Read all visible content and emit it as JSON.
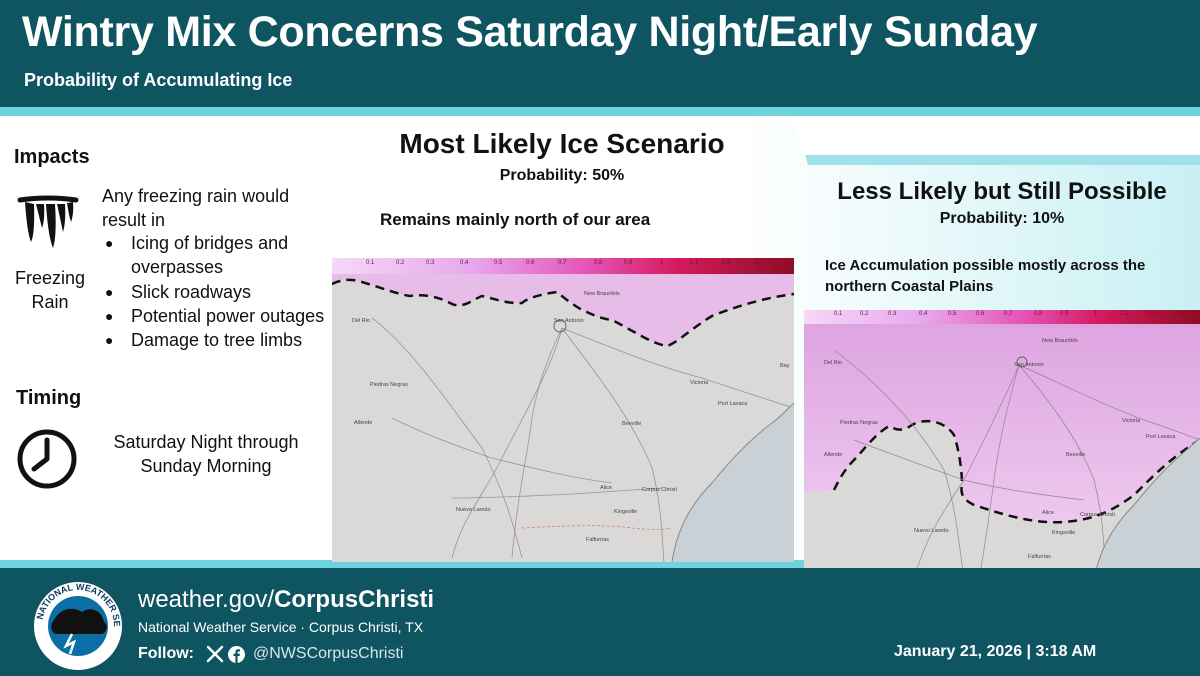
{
  "header": {
    "title": "Wintry Mix Concerns Saturday Night/Early Sunday",
    "subtitle": "Probability of Accumulating Ice"
  },
  "impacts": {
    "heading": "Impacts",
    "icon": "freezing-rain-icon",
    "icon_label": "Freezing Rain",
    "intro": "Any freezing rain would result in",
    "items": [
      "Icing of bridges and overpasses",
      "Slick roadways",
      "Potential power outages",
      "Damage to tree limbs"
    ]
  },
  "timing": {
    "heading": "Timing",
    "icon": "clock-icon",
    "text": "Saturday Night through Sunday Morning"
  },
  "scenario_main": {
    "title": "Most Likely Ice Scenario",
    "probability": "Probability: 50%",
    "note": "Remains mainly north of our area"
  },
  "scenario_alt": {
    "title": "Less Likely but Still Possible",
    "probability": "Probability: 10%",
    "note": "Ice Accumulation possible mostly across the northern Coastal Plains"
  },
  "scale_ticks": [
    "0.1",
    "0.2",
    "0.3",
    "0.4",
    "0.5",
    "0.6",
    "0.7",
    "0.8",
    "0.9",
    "1",
    "1.1",
    "1.2",
    "1.3"
  ],
  "cities": {
    "new_braunfels": "New Braunfels",
    "san_antonio": "San Antonio",
    "del_rio": "Del Rio",
    "piedras_negras": "Piedras Negras",
    "allende": "Allende",
    "victoria": "Victoria",
    "port_lavaca": "Port Lavaca",
    "bay_city": "Bay",
    "beeville": "Beeville",
    "alice": "Alice",
    "corpus_christi": "Corpus Christi",
    "kingsville": "Kingsville",
    "nuevo_laredo": "Nuevo Laredo",
    "falfurrias": "Falfurrias"
  },
  "footer": {
    "website_prefix": "weather.gov/",
    "website_bold": "CorpusChristi",
    "office": "National Weather Service · Corpus Christi, TX",
    "follow_label": "Follow:",
    "handle": "@NWSCorpusChristi",
    "datetime": "January 21, 2026 | 3:18 AM",
    "logo_text": "NATIONAL WEATHER SERVICE"
  },
  "colors": {
    "header_bg": "#0f5561",
    "accent": "#6fd3df",
    "light_panel": "#c9f0f4",
    "ice_pink": "#e9a6ea"
  }
}
